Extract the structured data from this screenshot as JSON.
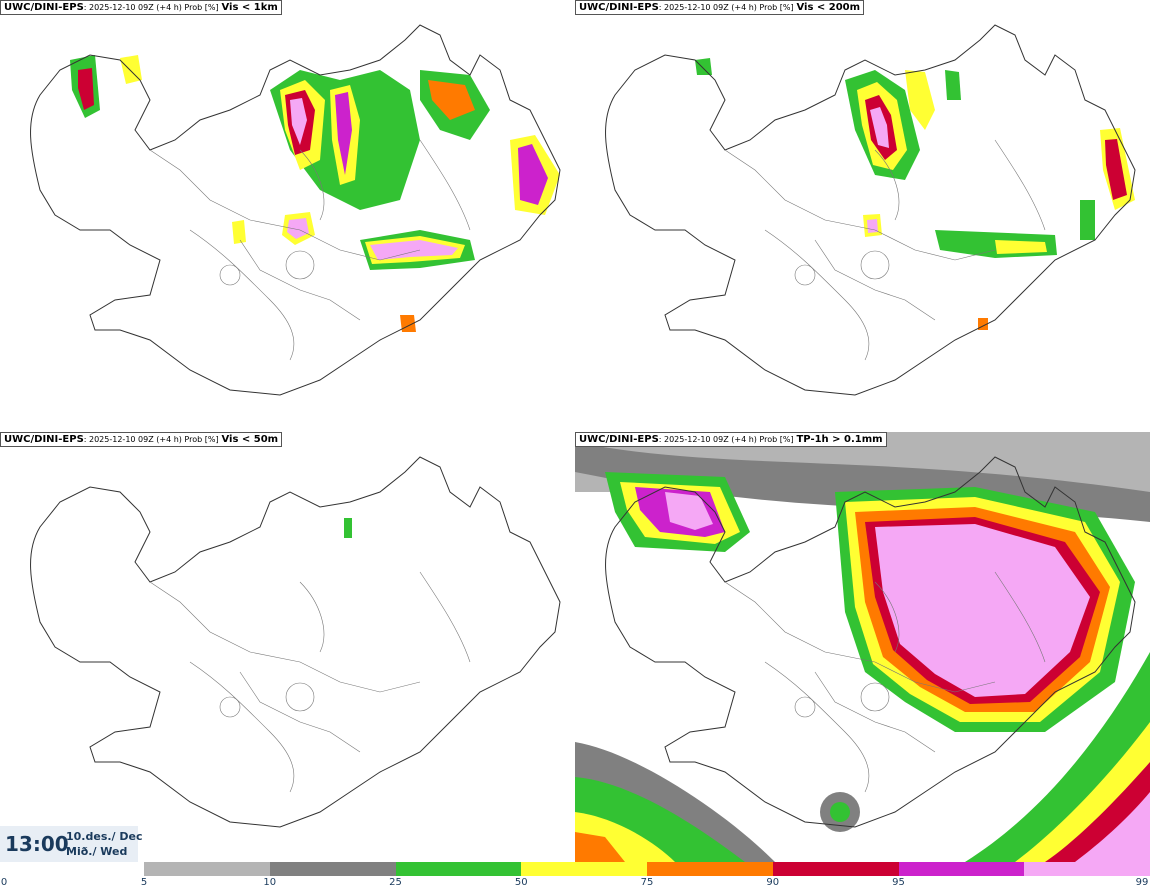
{
  "panels": [
    {
      "model": "UWC/DINI-EPS",
      "run": ": 2025-12-10 09Z (+4 h) Prob [%]",
      "field": "Vis < 1km"
    },
    {
      "model": "UWC/DINI-EPS",
      "run": ": 2025-12-10 09Z (+4 h) Prob [%]",
      "field": "Vis < 200m"
    },
    {
      "model": "UWC/DINI-EPS",
      "run": ": 2025-12-10 09Z (+4 h) Prob [%]",
      "field": "Vis < 50m"
    },
    {
      "model": "UWC/DINI-EPS",
      "run": ": 2025-12-10 09Z (+4 h) Prob [%]",
      "field": "TP-1h > 0.1mm"
    }
  ],
  "valid": {
    "time": "13:00",
    "date_line1": "10.des./ Dec",
    "date_line2": "Mið./ Wed"
  },
  "colorbar": {
    "ticks": [
      "0",
      "5",
      "10",
      "25",
      "50",
      "75",
      "90",
      "95",
      "99"
    ],
    "colors": [
      "#ffffff",
      "#b4b4b4",
      "#808080",
      "#33c233",
      "#ffff33",
      "#ff7a00",
      "#cc0033",
      "#cc22cc",
      "#f5a8f5"
    ]
  },
  "colors": {
    "coast": "#333333",
    "time_text": "#1a3a5c"
  }
}
